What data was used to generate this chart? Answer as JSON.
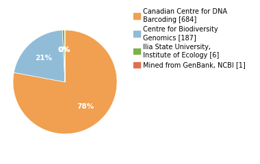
{
  "values": [
    684,
    187,
    6,
    1
  ],
  "colors": [
    "#f0a050",
    "#90bcd8",
    "#7bb04a",
    "#e07050"
  ],
  "legend_labels": [
    "Canadian Centre for DNA\nBarcoding [684]",
    "Centre for Biodiversity\nGenomics [187]",
    "Ilia State University,\nInstitute of Ecology [6]",
    "Mined from GenBank, NCBI [1]"
  ],
  "background_color": "#ffffff",
  "text_color": "#ffffff",
  "font_size": 7.5,
  "legend_font_size": 7.0
}
